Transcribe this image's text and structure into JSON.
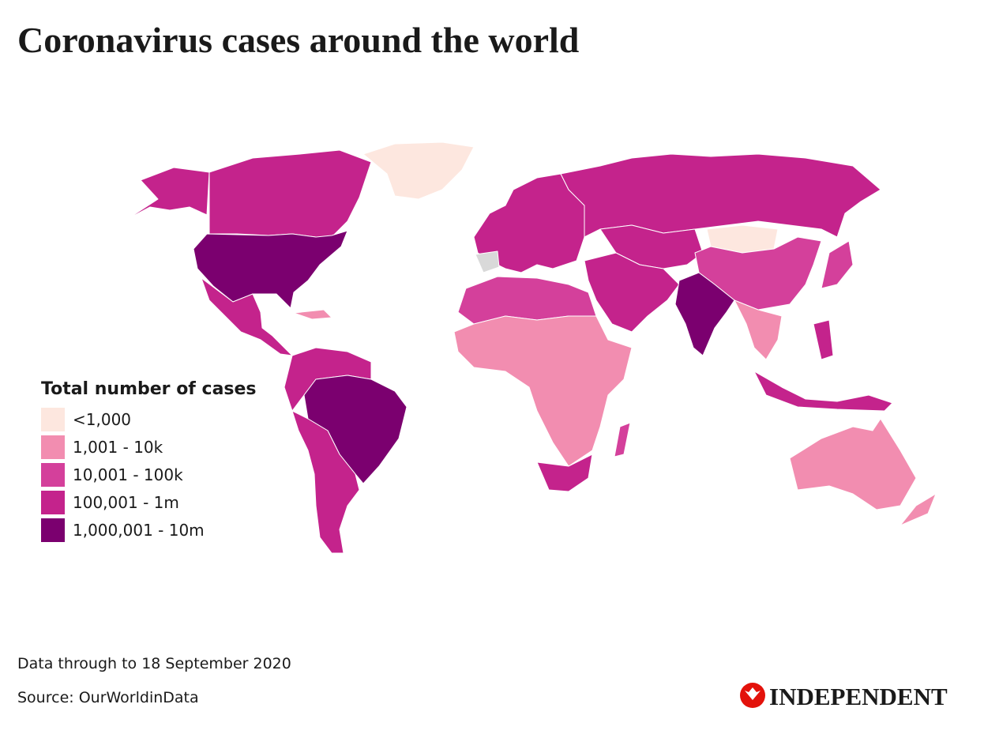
{
  "title": "Coronavirus cases around the world",
  "legend": {
    "title": "Total number of cases",
    "items": [
      {
        "label": "<1,000",
        "color": "#fde7df"
      },
      {
        "label": "1,001 - 10k",
        "color": "#f28db0"
      },
      {
        "label": "10,001 - 100k",
        "color": "#d4409b"
      },
      {
        "label": "100,001 - 1m",
        "color": "#c4238c"
      },
      {
        "label": "1,000,001 - 10m",
        "color": "#7b006f"
      }
    ]
  },
  "footer": {
    "note": "Data through to 18 September 2020",
    "source": "Source: OurWorldinData"
  },
  "brand": "INDEPENDENT"
}
